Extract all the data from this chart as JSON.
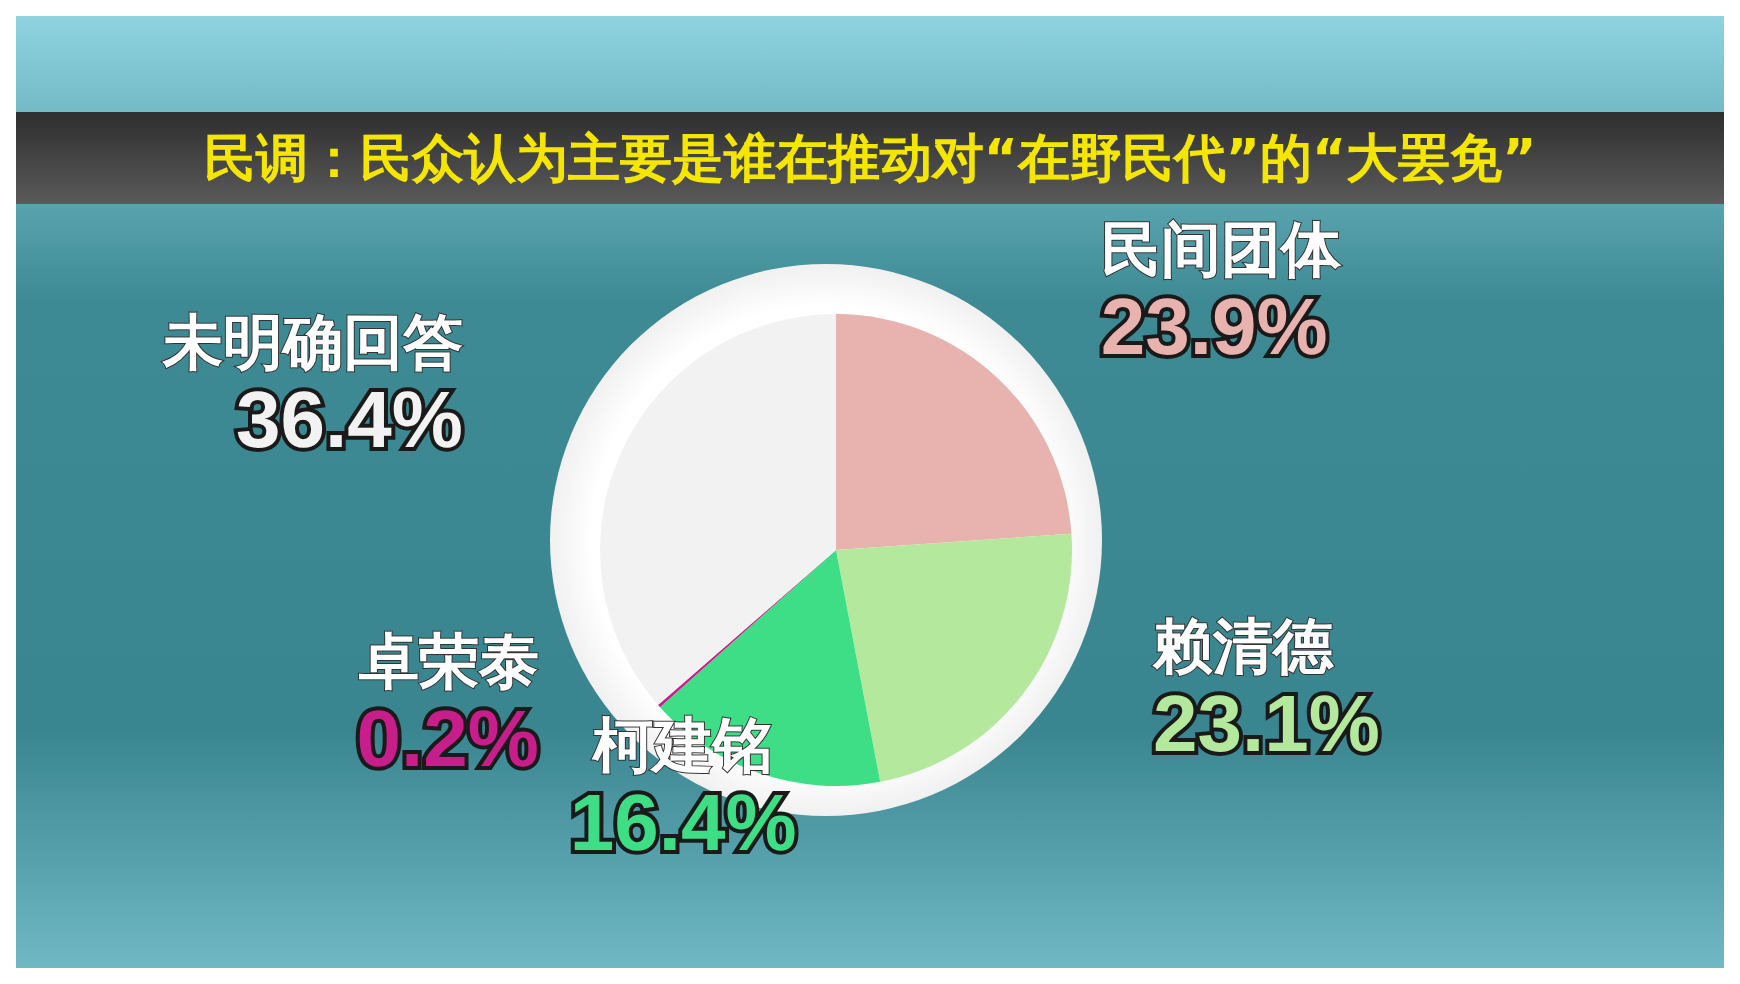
{
  "chart_data": {
    "type": "pie",
    "title": "民调：民众认为主要是谁在推动对“在野民代”的“大罢免”",
    "categories": [
      "民间团体",
      "赖清德",
      "柯建铭",
      "卓荣泰",
      "未明确回答"
    ],
    "values": [
      23.9,
      23.1,
      16.4,
      0.2,
      36.4
    ],
    "value_labels": [
      "23.9%",
      "23.1%",
      "16.4%",
      "0.2%",
      "36.4%"
    ],
    "colors": [
      "#e8b2ae",
      "#b4e89c",
      "#3ede86",
      "#c81e8c",
      "#f2f2f2"
    ]
  }
}
